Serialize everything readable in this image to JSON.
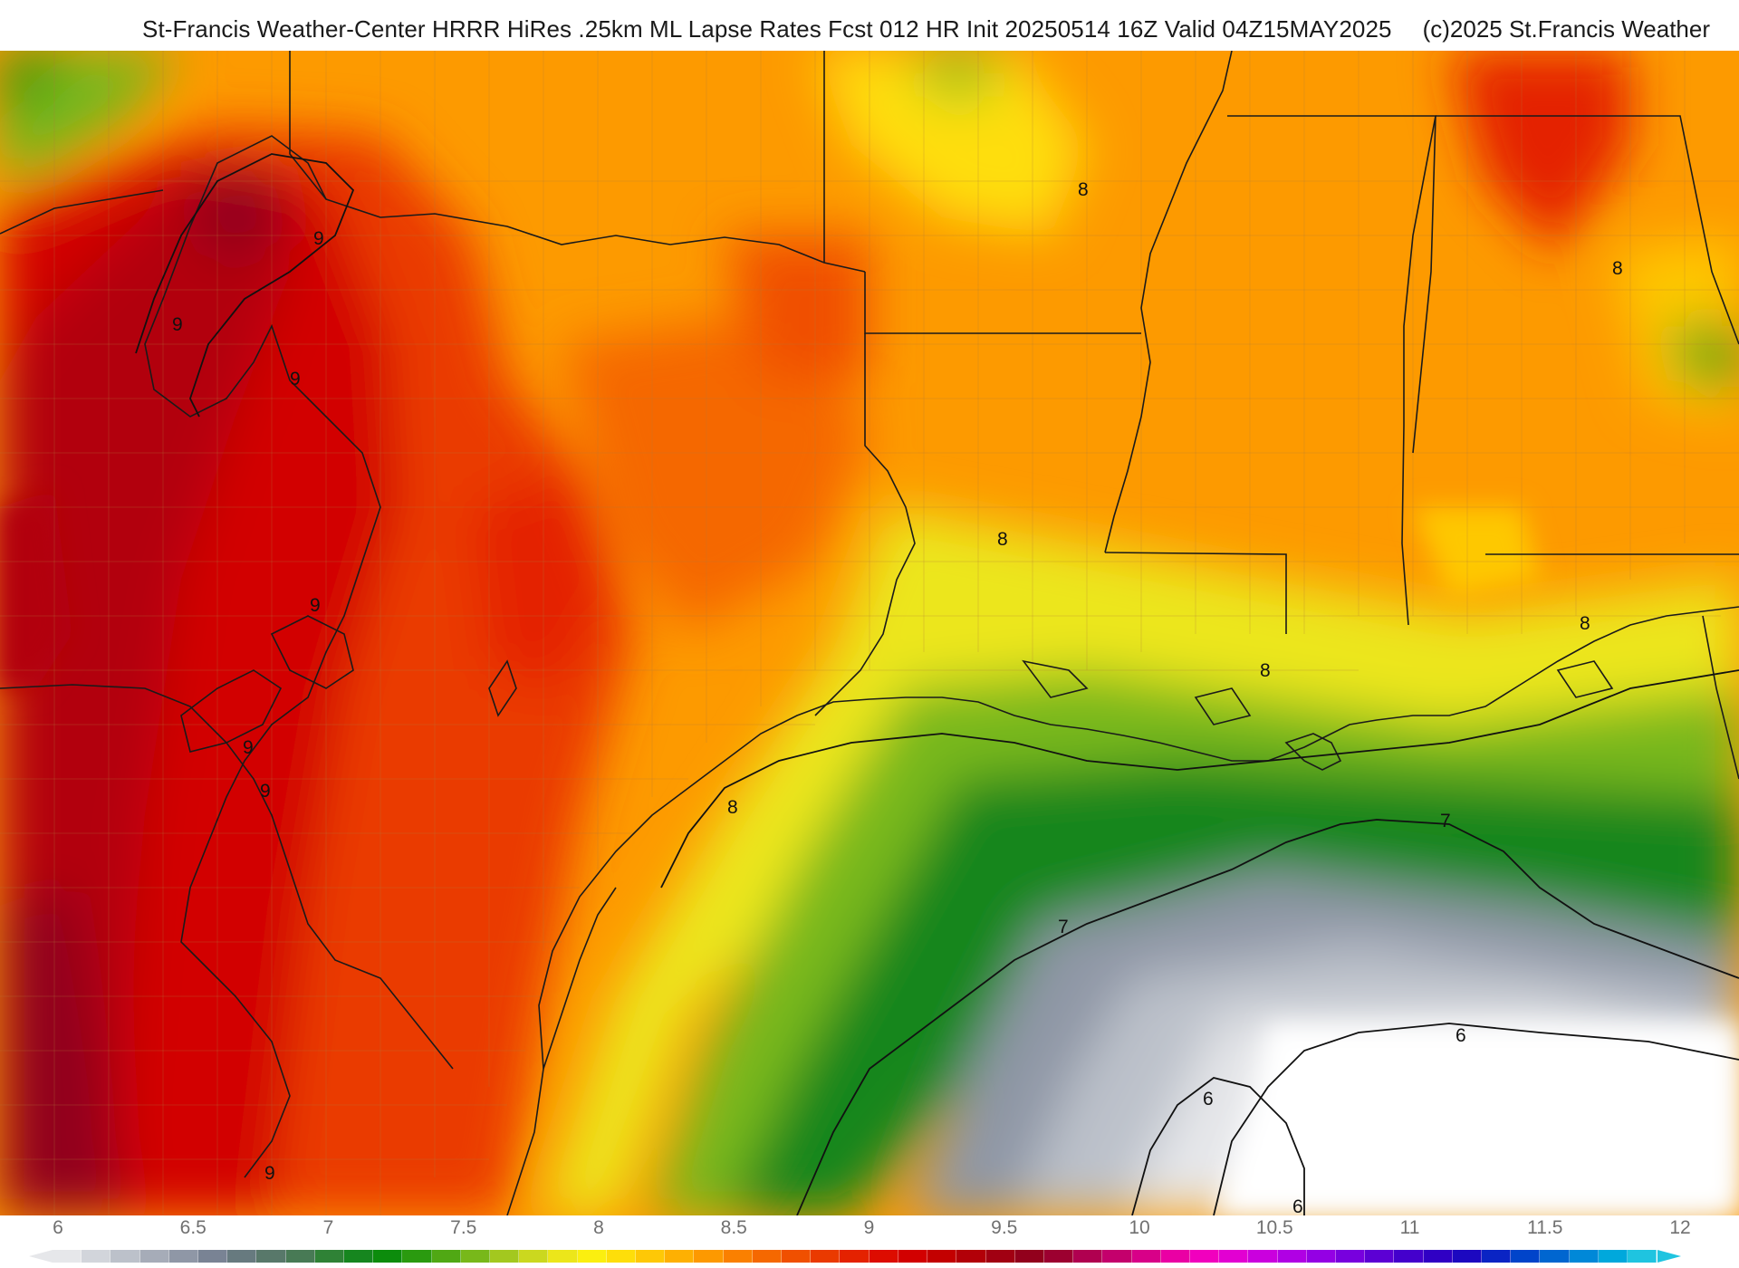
{
  "header": {
    "title": "St-Francis Weather-Center HRRR HiRes .25km ML Lapse Rates  Fcst 012 HR Init 20250514 16Z  Valid 04Z15MAY2025",
    "copyright": "(c)2025 St.Francis Weather"
  },
  "map": {
    "contour_labels": [
      "9",
      "9",
      "9",
      "9",
      "9",
      "9",
      "9",
      "8",
      "8",
      "8",
      "8",
      "8",
      "8",
      "7",
      "7",
      "6",
      "6",
      "6"
    ],
    "colors": {
      "land_outline": "#1a1a1a",
      "county_lines": "#b08040"
    }
  },
  "colorbar": {
    "tick_labels": [
      "6",
      "6.5",
      "7",
      "7.5",
      "8",
      "8.5",
      "9",
      "9.5",
      "10",
      "10.5",
      "11",
      "11.5",
      "12"
    ],
    "colors": [
      "#e6e7ea",
      "#d2d5db",
      "#bcc1ca",
      "#a6acb8",
      "#8f97a6",
      "#798394",
      "#677a7f",
      "#58786a",
      "#487a55",
      "#2f8236",
      "#16861f",
      "#0c8c0c",
      "#2a9a0f",
      "#50a814",
      "#78b81a",
      "#a3c81f",
      "#cbd81f",
      "#ece61a",
      "#fbef0f",
      "#fede0a",
      "#fec806",
      "#feb002",
      "#fd9900",
      "#fa8000",
      "#f56800",
      "#f05000",
      "#ea3a00",
      "#e42200",
      "#dd0c00",
      "#d20000",
      "#c30000",
      "#b20008",
      "#a10012",
      "#92001c",
      "#9c0030",
      "#b00050",
      "#c4006c",
      "#d80088",
      "#ea00a4",
      "#f100be",
      "#e200d2",
      "#ca00de",
      "#b000e4",
      "#9400e4",
      "#7800de",
      "#5c00d4",
      "#4400cc",
      "#3000c4",
      "#1c08c0",
      "#0a24c4",
      "#0044ca",
      "#0066d0",
      "#0088d8",
      "#00a8dc",
      "#1fc4e0"
    ]
  }
}
